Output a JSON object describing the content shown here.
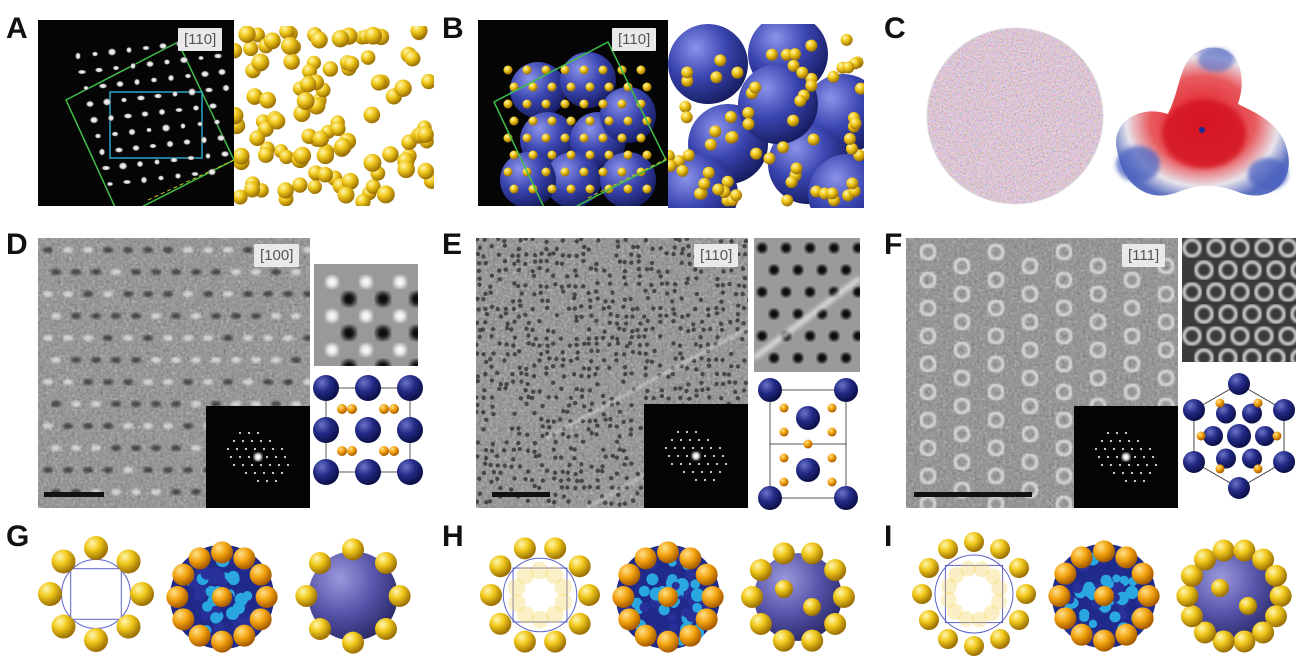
{
  "panels": {
    "A": {
      "letter": "A",
      "zone": "[110]"
    },
    "B": {
      "letter": "B",
      "zone": "[110]"
    },
    "C": {
      "letter": "C"
    },
    "D": {
      "letter": "D",
      "zone": "[100]"
    },
    "E": {
      "letter": "E",
      "zone": "[110]"
    },
    "F": {
      "letter": "F",
      "zone": "[111]"
    },
    "G": {
      "letter": "G"
    },
    "H": {
      "letter": "H"
    },
    "I": {
      "letter": "I"
    }
  },
  "colors": {
    "gold": "#e8c21a",
    "blue": "#2f3a9e",
    "cyan": "#2aa7e0",
    "green_box": "#3fbf4a",
    "blue_box": "#2aa7c9",
    "red_surface": "#d8202a"
  }
}
